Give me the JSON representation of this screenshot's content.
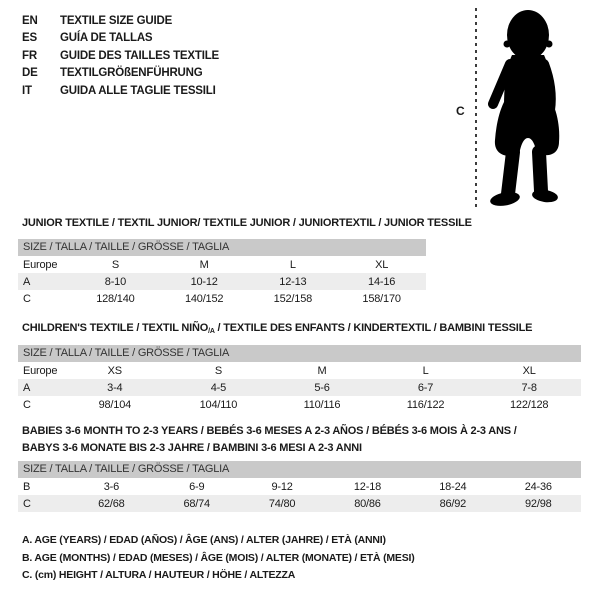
{
  "colors": {
    "header_bar": "#c9c9c9",
    "alt_row": "#ededed",
    "text": "#1a1a1a",
    "silhouette": "#000000"
  },
  "languages": [
    {
      "code": "EN",
      "title": "TEXTILE SIZE GUIDE"
    },
    {
      "code": "ES",
      "title": "GUÍA DE TALLAS"
    },
    {
      "code": "FR",
      "title": "GUIDE DES TAILLES TEXTILE"
    },
    {
      "code": "DE",
      "title": "TEXTILGRÖßENFÜHRUNG"
    },
    {
      "code": "IT",
      "title": "GUIDA ALLE TAGLIE TESSILI"
    }
  ],
  "figure": {
    "height_label": "C",
    "icon": "baby-silhouette"
  },
  "sections": [
    {
      "title": "JUNIOR TEXTILE / TEXTIL JUNIOR/ TEXTILE JUNIOR / JUNIORTEXTIL / JUNIOR TESSILE",
      "size_header": "SIZE / TALLA / TAILLE / GRÖSSE / TAGLIA",
      "table": {
        "rows": [
          [
            "Europe",
            "S",
            "M",
            "L",
            "XL"
          ],
          [
            "A",
            "8-10",
            "10-12",
            "12-13",
            "14-16"
          ],
          [
            "C",
            "128/140",
            "140/152",
            "152/158",
            "158/170"
          ]
        ]
      }
    },
    {
      "title_pre": "CHILDREN'S TEXTILE / TEXTIL NIÑO",
      "title_sub": "/A",
      "title_post": " / TEXTILE DES ENFANTS / KINDERTEXTIL / BAMBINI TESSILE",
      "size_header": "SIZE / TALLA / TAILLE / GRÖSSE / TAGLIA",
      "table": {
        "rows": [
          [
            "Europe",
            "XS",
            "S",
            "M",
            "L",
            "XL"
          ],
          [
            "A",
            "3-4",
            "4-5",
            "5-6",
            "6-7",
            "7-8"
          ],
          [
            "C",
            "98/104",
            "104/110",
            "110/116",
            "116/122",
            "122/128"
          ]
        ]
      }
    },
    {
      "title_line1": "BABIES 3-6 MONTH TO 2-3 YEARS / BEBÉS 3-6 MESES A 2-3 AÑOS / BÉBÉS 3-6 MOIS À 2-3 ANS /",
      "title_line2": "BABYS 3-6 MONATE BIS 2-3 JAHRE / BAMBINI 3-6 MESI A 2-3 ANNI",
      "size_header": "SIZE / TALLA / TAILLE / GRÖSSE / TAGLIA",
      "table": {
        "rows": [
          [
            "B",
            "3-6",
            "6-9",
            "9-12",
            "12-18",
            "18-24",
            "24-36"
          ],
          [
            "C",
            "62/68",
            "68/74",
            "74/80",
            "80/86",
            "86/92",
            "92/98"
          ]
        ]
      }
    }
  ],
  "notes": [
    "A. AGE (YEARS) / EDAD (AÑOS) / ÂGE (ANS) / ALTER (JAHRE) / ETÀ (ANNI)",
    "B. AGE (MONTHS) / EDAD (MESES) / ÂGE (MOIS) / ALTER (MONATE) / ETÀ (MESI)",
    "C. (cm) HEIGHT / ALTURA / HAUTEUR / HÖHE / ALTEZZA"
  ]
}
